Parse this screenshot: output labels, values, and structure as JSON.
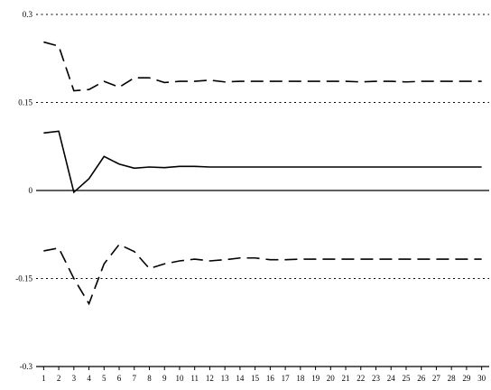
{
  "chart_data": {
    "type": "line",
    "title": "",
    "xlabel": "",
    "ylabel": "",
    "x": [
      1,
      2,
      3,
      4,
      5,
      6,
      7,
      8,
      9,
      10,
      11,
      12,
      13,
      14,
      15,
      16,
      17,
      18,
      19,
      20,
      21,
      22,
      23,
      24,
      25,
      26,
      27,
      28,
      29,
      30
    ],
    "xlim": [
      0.5,
      30.5
    ],
    "ylim": [
      -0.3,
      0.3
    ],
    "yticks": [
      "0.3",
      "0.15",
      "0",
      "-0.15",
      "-0.3"
    ],
    "ytick_values": [
      0.3,
      0.15,
      0,
      -0.15,
      -0.3
    ],
    "xticks": [
      "1",
      "2",
      "3",
      "4",
      "5",
      "6",
      "7",
      "8",
      "9",
      "10",
      "11",
      "12",
      "13",
      "14",
      "15",
      "16",
      "17",
      "18",
      "19",
      "20",
      "21",
      "22",
      "23",
      "24",
      "25",
      "26",
      "27",
      "28",
      "29",
      "30"
    ],
    "grid": "horizontal-dotted",
    "series": [
      {
        "style": "solid",
        "values": [
          0.098,
          0.101,
          -0.003,
          0.02,
          0.058,
          0.045,
          0.038,
          0.04,
          0.039,
          0.041,
          0.041,
          0.04,
          0.04,
          0.04,
          0.04,
          0.04,
          0.04,
          0.04,
          0.04,
          0.04,
          0.04,
          0.04,
          0.04,
          0.04,
          0.04,
          0.04,
          0.04,
          0.04,
          0.04,
          0.04
        ]
      },
      {
        "style": "dashed",
        "values": [
          0.253,
          0.246,
          0.17,
          0.172,
          0.186,
          0.176,
          0.192,
          0.192,
          0.184,
          0.186,
          0.186,
          0.188,
          0.185,
          0.186,
          0.186,
          0.186,
          0.186,
          0.186,
          0.186,
          0.186,
          0.186,
          0.185,
          0.186,
          0.186,
          0.185,
          0.186,
          0.186,
          0.186,
          0.186,
          0.186
        ]
      },
      {
        "style": "dashed",
        "values": [
          -0.103,
          -0.098,
          -0.15,
          -0.193,
          -0.125,
          -0.092,
          -0.104,
          -0.133,
          -0.125,
          -0.12,
          -0.117,
          -0.12,
          -0.118,
          -0.115,
          -0.115,
          -0.118,
          -0.118,
          -0.117,
          -0.117,
          -0.117,
          -0.117,
          -0.117,
          -0.117,
          -0.117,
          -0.117,
          -0.117,
          -0.117,
          -0.117,
          -0.117,
          -0.117
        ]
      }
    ]
  }
}
